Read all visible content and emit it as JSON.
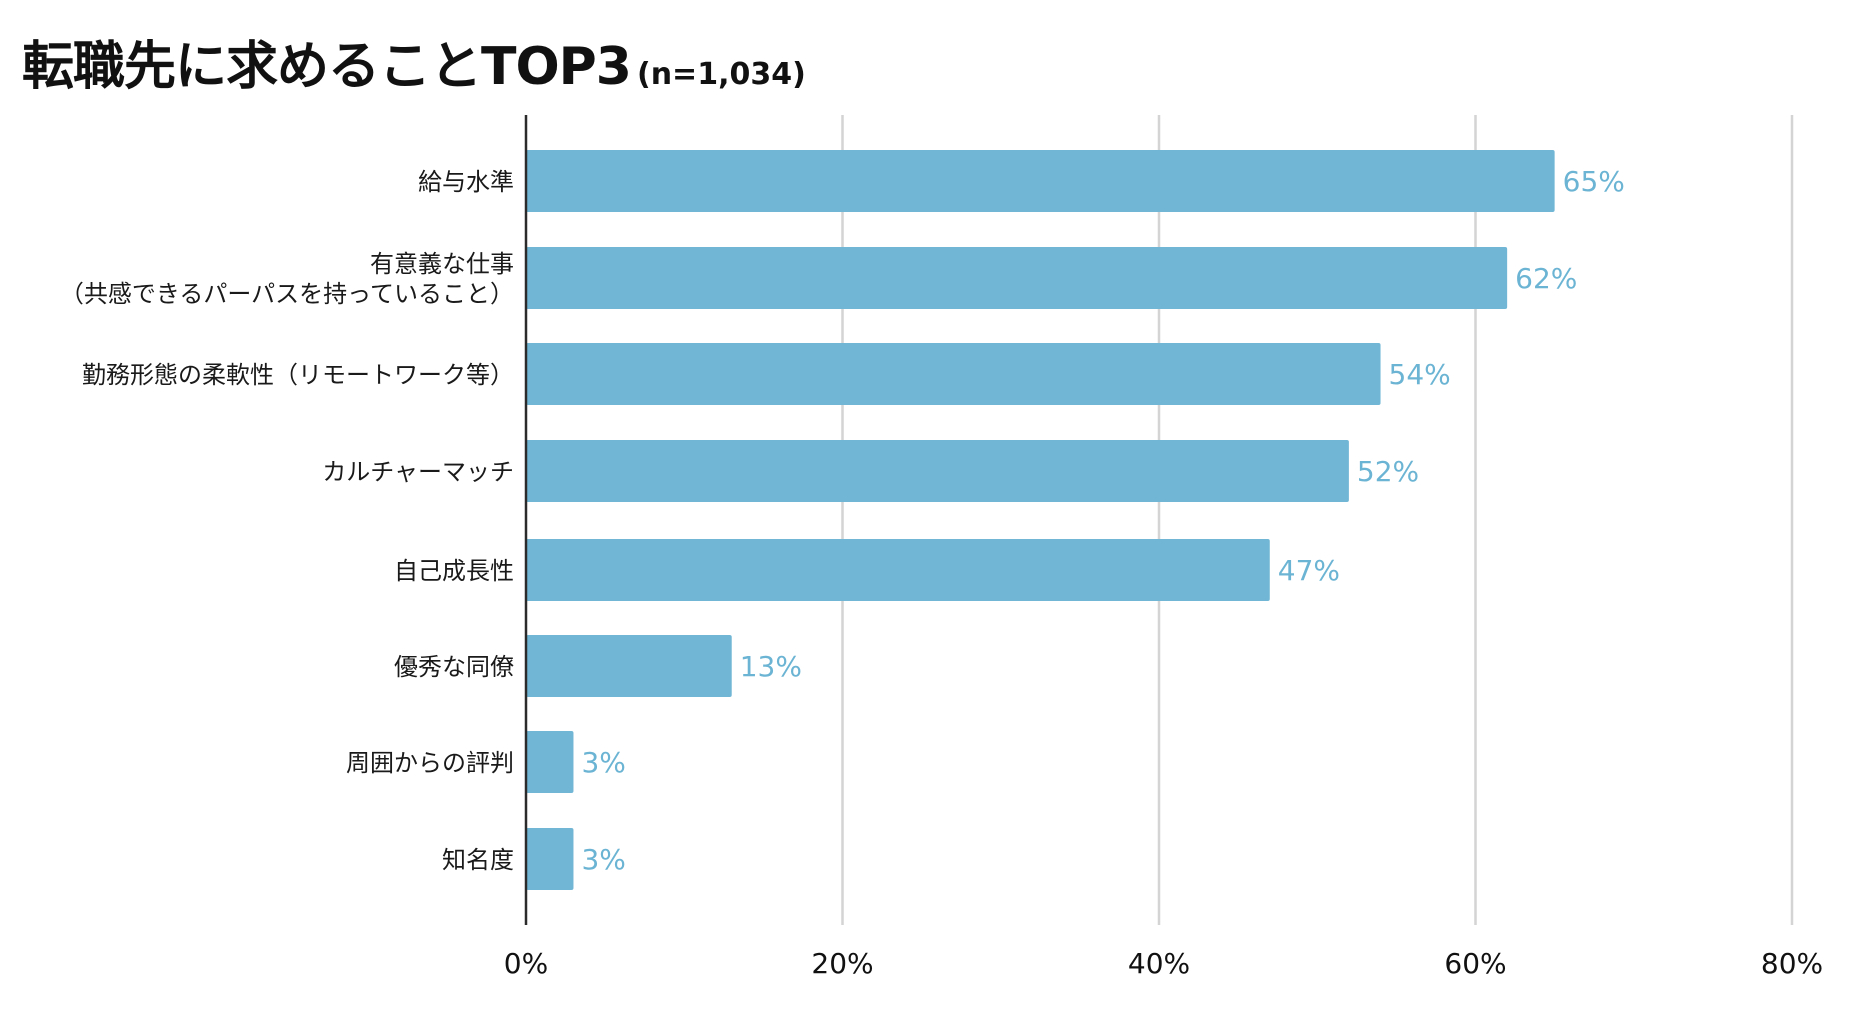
{
  "chart_data": {
    "type": "bar",
    "orientation": "horizontal",
    "title": "転職先に求めることTOP3",
    "subtitle": "(n=1,034)",
    "categories": [
      "給与水準",
      "有意義な仕事\n（共感できるパーパスを持っていること）",
      "勤務形態の柔軟性（リモートワーク等）",
      "カルチャーマッチ",
      "自己成長性",
      "優秀な同僚",
      "周囲からの評判",
      "知名度"
    ],
    "values": [
      65,
      62,
      54,
      52,
      47,
      13,
      3,
      3
    ],
    "value_labels": [
      "65%",
      "62%",
      "54%",
      "52%",
      "47%",
      "13%",
      "3%",
      "3%"
    ],
    "xlim": [
      0,
      80
    ],
    "xticks": [
      0,
      20,
      40,
      60,
      80
    ],
    "xtick_labels": [
      "0%",
      "20%",
      "40%",
      "60%",
      "80%"
    ],
    "xlabel": "",
    "ylabel": "",
    "grid": true,
    "legend": "none",
    "colors": {
      "bar": "#71b7d5",
      "value_label": "#6cb4d3",
      "grid": "#d4d4d4",
      "axis": "#2b2b2b",
      "text": "#1a1a1a"
    }
  }
}
